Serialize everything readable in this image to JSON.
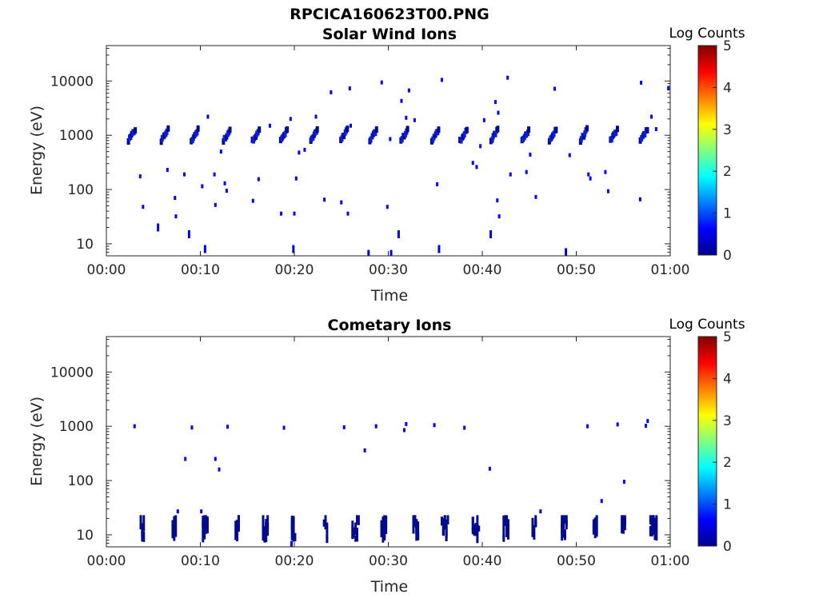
{
  "figure": {
    "title": "RPCICA160623T00.PNG"
  },
  "chart_data": [
    {
      "type": "heatmap",
      "title": "Solar Wind Ions",
      "xlabel": "Time",
      "ylabel": "Energy (eV)",
      "y_scale": "log",
      "ylim": [
        6,
        45000
      ],
      "xlim": [
        "00:00",
        "01:00"
      ],
      "x_ticks": [
        "00:00",
        "00:10",
        "00:20",
        "00:30",
        "00:40",
        "00:50",
        "01:00"
      ],
      "y_ticks": [
        "10",
        "100",
        "1000",
        "10000"
      ],
      "colorbar": {
        "label": "Log Counts",
        "ticks": [
          "0",
          "1",
          "2",
          "3",
          "4",
          "5"
        ],
        "range": [
          0,
          5
        ],
        "colormap": "jet"
      },
      "colors": {
        "dominant_mark": "#0a1fd8",
        "dark_mark": "#000a8c"
      },
      "bursts_minute": [
        2.7,
        6.2,
        9.4,
        12.8,
        15.9,
        18.9,
        22.1,
        25.3,
        28.4,
        31.7,
        35.0,
        38.0,
        41.3,
        44.6,
        47.5,
        50.8,
        54.0,
        57.2
      ],
      "bursts_center_eV": 1000,
      "points": [
        {
          "t": 3.6,
          "e": 175,
          "v": 0.6
        },
        {
          "t": 3.9,
          "e": 48,
          "v": 0.6
        },
        {
          "t": 5.5,
          "e": 20,
          "v": 0.5
        },
        {
          "t": 6.5,
          "e": 230,
          "v": 0.6
        },
        {
          "t": 7.3,
          "e": 70,
          "v": 0.5
        },
        {
          "t": 7.4,
          "e": 32,
          "v": 0.5
        },
        {
          "t": 8.3,
          "e": 190,
          "v": 0.6
        },
        {
          "t": 8.8,
          "e": 15,
          "v": 0.5
        },
        {
          "t": 10.2,
          "e": 115,
          "v": 0.5
        },
        {
          "t": 10.5,
          "e": 8,
          "v": 0.5
        },
        {
          "t": 10.8,
          "e": 2200,
          "v": 0.6
        },
        {
          "t": 11.5,
          "e": 190,
          "v": 0.6
        },
        {
          "t": 11.6,
          "e": 52,
          "v": 0.6
        },
        {
          "t": 12.2,
          "e": 500,
          "v": 0.6
        },
        {
          "t": 12.6,
          "e": 130,
          "v": 0.6
        },
        {
          "t": 12.8,
          "e": 95,
          "v": 0.6
        },
        {
          "t": 15.6,
          "e": 62,
          "v": 0.6
        },
        {
          "t": 16.2,
          "e": 155,
          "v": 0.6
        },
        {
          "t": 17.4,
          "e": 1500,
          "v": 0.6
        },
        {
          "t": 18.6,
          "e": 36,
          "v": 0.6
        },
        {
          "t": 19.6,
          "e": 2000,
          "v": 0.6
        },
        {
          "t": 19.9,
          "e": 8,
          "v": 0.5
        },
        {
          "t": 20.0,
          "e": 36,
          "v": 0.6
        },
        {
          "t": 20.2,
          "e": 160,
          "v": 0.6
        },
        {
          "t": 20.5,
          "e": 480,
          "v": 0.6
        },
        {
          "t": 21.1,
          "e": 540,
          "v": 0.6
        },
        {
          "t": 22.3,
          "e": 2200,
          "v": 0.6
        },
        {
          "t": 23.2,
          "e": 65,
          "v": 0.4
        },
        {
          "t": 23.9,
          "e": 6200,
          "v": 0.6
        },
        {
          "t": 25.0,
          "e": 58,
          "v": 0.6
        },
        {
          "t": 25.7,
          "e": 36,
          "v": 0.6
        },
        {
          "t": 25.9,
          "e": 7300,
          "v": 0.6
        },
        {
          "t": 26.0,
          "e": 1500,
          "v": 0.6
        },
        {
          "t": 27.9,
          "e": 6.5,
          "v": 0.5
        },
        {
          "t": 29.3,
          "e": 9400,
          "v": 0.6
        },
        {
          "t": 29.9,
          "e": 48,
          "v": 0.6
        },
        {
          "t": 30.2,
          "e": 850,
          "v": 0.6
        },
        {
          "t": 30.3,
          "e": 6.5,
          "v": 0.5
        },
        {
          "t": 31.1,
          "e": 15,
          "v": 0.5
        },
        {
          "t": 31.4,
          "e": 4300,
          "v": 0.6
        },
        {
          "t": 31.9,
          "e": 2100,
          "v": 0.6
        },
        {
          "t": 32.2,
          "e": 6700,
          "v": 0.6
        },
        {
          "t": 32.8,
          "e": 1900,
          "v": 0.6
        },
        {
          "t": 35.2,
          "e": 125,
          "v": 0.6
        },
        {
          "t": 35.7,
          "e": 10500,
          "v": 0.6
        },
        {
          "t": 35.4,
          "e": 8,
          "v": 0.5
        },
        {
          "t": 39.0,
          "e": 310,
          "v": 0.6
        },
        {
          "t": 39.4,
          "e": 260,
          "v": 0.6
        },
        {
          "t": 39.8,
          "e": 630,
          "v": 0.6
        },
        {
          "t": 40.2,
          "e": 1900,
          "v": 0.6
        },
        {
          "t": 40.9,
          "e": 15,
          "v": 0.5
        },
        {
          "t": 41.4,
          "e": 4100,
          "v": 0.6
        },
        {
          "t": 41.7,
          "e": 2600,
          "v": 0.6
        },
        {
          "t": 41.6,
          "e": 63,
          "v": 0.6
        },
        {
          "t": 41.8,
          "e": 32,
          "v": 0.6
        },
        {
          "t": 42.7,
          "e": 11500,
          "v": 0.6
        },
        {
          "t": 43.0,
          "e": 190,
          "v": 0.6
        },
        {
          "t": 44.7,
          "e": 210,
          "v": 0.6
        },
        {
          "t": 45.1,
          "e": 440,
          "v": 0.6
        },
        {
          "t": 45.7,
          "e": 73,
          "v": 0.6
        },
        {
          "t": 47.7,
          "e": 7200,
          "v": 0.6
        },
        {
          "t": 48.9,
          "e": 7,
          "v": 0.5
        },
        {
          "t": 49.3,
          "e": 430,
          "v": 0.6
        },
        {
          "t": 51.3,
          "e": 190,
          "v": 0.6
        },
        {
          "t": 51.5,
          "e": 160,
          "v": 0.6
        },
        {
          "t": 53.1,
          "e": 210,
          "v": 0.6
        },
        {
          "t": 53.4,
          "e": 93,
          "v": 0.6
        },
        {
          "t": 56.8,
          "e": 66,
          "v": 0.4
        },
        {
          "t": 56.9,
          "e": 9300,
          "v": 0.6
        },
        {
          "t": 58.0,
          "e": 2200,
          "v": 0.6
        },
        {
          "t": 58.5,
          "e": 1300,
          "v": 0.6
        },
        {
          "t": 59.8,
          "e": 7300,
          "v": 0.6
        }
      ]
    },
    {
      "type": "heatmap",
      "title": "Cometary Ions",
      "xlabel": "Time",
      "ylabel": "Energy (eV)",
      "y_scale": "log",
      "ylim": [
        6,
        45000
      ],
      "xlim": [
        "00:00",
        "01:00"
      ],
      "x_ticks": [
        "00:00",
        "00:10",
        "00:20",
        "00:30",
        "00:40",
        "00:50",
        "01:00"
      ],
      "y_ticks": [
        "10",
        "100",
        "1000",
        "10000"
      ],
      "colorbar": {
        "label": "Log Counts",
        "ticks": [
          "0",
          "1",
          "2",
          "3",
          "4",
          "5"
        ],
        "range": [
          0,
          5
        ],
        "colormap": "jet"
      },
      "colors": {
        "dominant_mark": "#000a8c"
      },
      "bursts_minute": [
        3.9,
        7.3,
        10.6,
        14.0,
        17.0,
        20.0,
        23.4,
        26.6,
        29.6,
        33.0,
        36.1,
        39.4,
        42.6,
        45.6,
        48.8,
        52.1,
        55.1,
        58.3
      ],
      "bursts_energy_range_eV": [
        7,
        23
      ],
      "points": [
        {
          "t": 3.0,
          "e": 1000,
          "v": 0.6
        },
        {
          "t": 8.4,
          "e": 250,
          "v": 0.6
        },
        {
          "t": 9.1,
          "e": 950,
          "v": 0.6
        },
        {
          "t": 11.6,
          "e": 250,
          "v": 0.6
        },
        {
          "t": 12.0,
          "e": 160,
          "v": 0.6
        },
        {
          "t": 12.9,
          "e": 980,
          "v": 0.6
        },
        {
          "t": 18.9,
          "e": 940,
          "v": 0.6
        },
        {
          "t": 25.3,
          "e": 960,
          "v": 0.6
        },
        {
          "t": 27.5,
          "e": 360,
          "v": 0.6
        },
        {
          "t": 28.7,
          "e": 1000,
          "v": 0.6
        },
        {
          "t": 31.7,
          "e": 850,
          "v": 0.6
        },
        {
          "t": 31.9,
          "e": 1100,
          "v": 0.6
        },
        {
          "t": 34.9,
          "e": 1050,
          "v": 0.6
        },
        {
          "t": 38.1,
          "e": 940,
          "v": 0.6
        },
        {
          "t": 40.8,
          "e": 165,
          "v": 0.6
        },
        {
          "t": 51.2,
          "e": 1000,
          "v": 0.6
        },
        {
          "t": 52.7,
          "e": 42,
          "v": 0.6
        },
        {
          "t": 54.4,
          "e": 1080,
          "v": 0.6
        },
        {
          "t": 55.1,
          "e": 95,
          "v": 0.6
        },
        {
          "t": 57.4,
          "e": 1020,
          "v": 0.6
        },
        {
          "t": 57.6,
          "e": 1250,
          "v": 0.6
        },
        {
          "t": 10.1,
          "e": 27,
          "v": 0.5
        },
        {
          "t": 7.6,
          "e": 27,
          "v": 0.5
        },
        {
          "t": 46.2,
          "e": 27,
          "v": 0.5
        },
        {
          "t": 19.7,
          "e": 6.5,
          "v": 0.5
        }
      ]
    }
  ]
}
